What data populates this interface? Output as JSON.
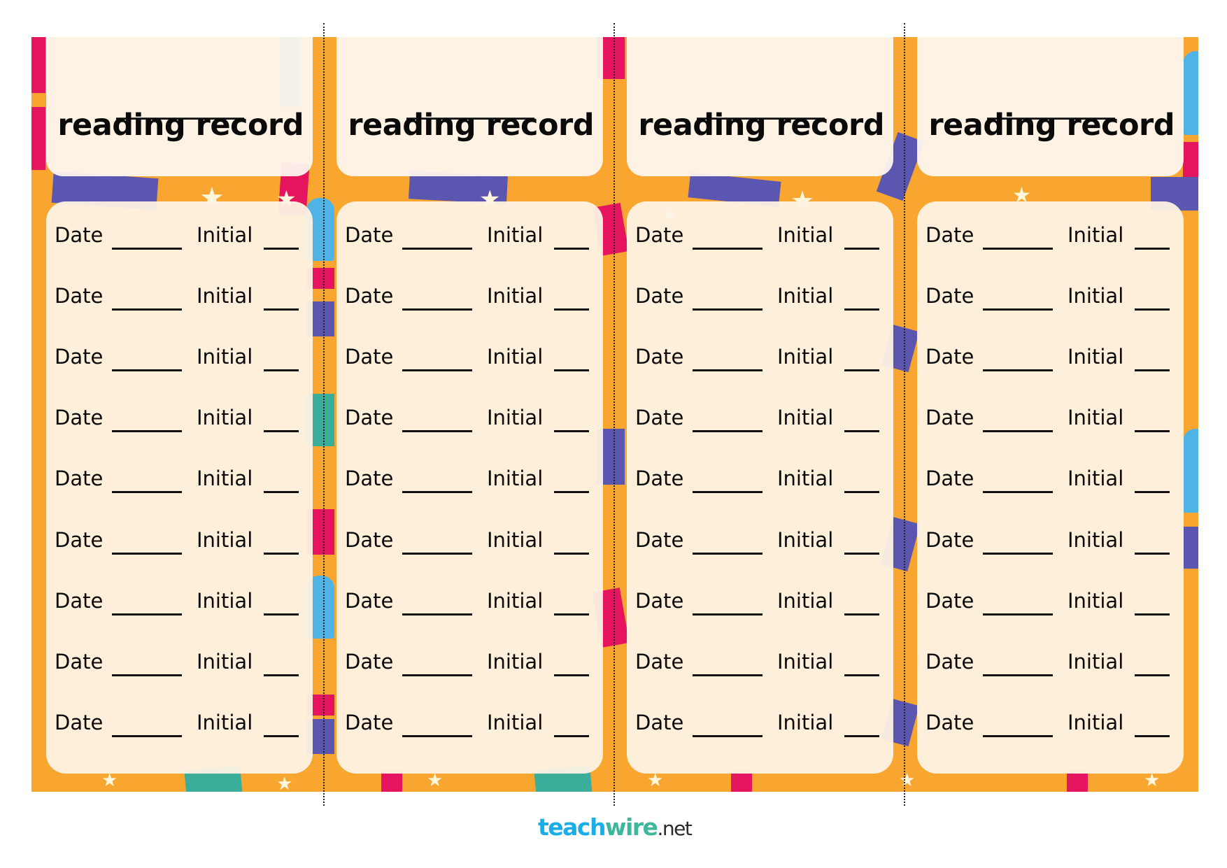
{
  "document": {
    "type": "printable bookmarks sheet",
    "colors": {
      "background_band": "#F8A630",
      "card_background": "#FDF2E4",
      "text": "#0A0A0A",
      "brand_teach": "#1AAEE8",
      "brand_wire": "#3DB89A",
      "brand_net": "#2A2A2A"
    }
  },
  "bookmarks": [
    {
      "name_blank": "_____________",
      "title": "reading record",
      "rows": [
        {
          "date_label": "Date",
          "date_blank": "______",
          "initial_label": "Initial",
          "initial_blank": "___"
        },
        {
          "date_label": "Date",
          "date_blank": "______",
          "initial_label": "Initial",
          "initial_blank": "___"
        },
        {
          "date_label": "Date",
          "date_blank": "______",
          "initial_label": "Initial",
          "initial_blank": "___"
        },
        {
          "date_label": "Date",
          "date_blank": "______",
          "initial_label": "Initial",
          "initial_blank": "___"
        },
        {
          "date_label": "Date",
          "date_blank": "______",
          "initial_label": "Initial",
          "initial_blank": "___"
        },
        {
          "date_label": "Date",
          "date_blank": "______",
          "initial_label": "Initial",
          "initial_blank": "___"
        },
        {
          "date_label": "Date",
          "date_blank": "______",
          "initial_label": "Initial",
          "initial_blank": "___"
        },
        {
          "date_label": "Date",
          "date_blank": "______",
          "initial_label": "Initial",
          "initial_blank": "___"
        },
        {
          "date_label": "Date",
          "date_blank": "______",
          "initial_label": "Initial",
          "initial_blank": "___"
        }
      ]
    },
    {
      "name_blank": "_____________",
      "title": "reading record",
      "rows": [
        {
          "date_label": "Date",
          "date_blank": "______",
          "initial_label": "Initial",
          "initial_blank": "___"
        },
        {
          "date_label": "Date",
          "date_blank": "______",
          "initial_label": "Initial",
          "initial_blank": "___"
        },
        {
          "date_label": "Date",
          "date_blank": "______",
          "initial_label": "Initial",
          "initial_blank": "___"
        },
        {
          "date_label": "Date",
          "date_blank": "______",
          "initial_label": "Initial",
          "initial_blank": "___"
        },
        {
          "date_label": "Date",
          "date_blank": "______",
          "initial_label": "Initial",
          "initial_blank": "___"
        },
        {
          "date_label": "Date",
          "date_blank": "______",
          "initial_label": "Initial",
          "initial_blank": "___"
        },
        {
          "date_label": "Date",
          "date_blank": "______",
          "initial_label": "Initial",
          "initial_blank": "___"
        },
        {
          "date_label": "Date",
          "date_blank": "______",
          "initial_label": "Initial",
          "initial_blank": "___"
        },
        {
          "date_label": "Date",
          "date_blank": "______",
          "initial_label": "Initial",
          "initial_blank": "___"
        }
      ]
    },
    {
      "name_blank": "_____________",
      "title": "reading record",
      "rows": [
        {
          "date_label": "Date",
          "date_blank": "______",
          "initial_label": "Initial",
          "initial_blank": "___"
        },
        {
          "date_label": "Date",
          "date_blank": "______",
          "initial_label": "Initial",
          "initial_blank": "___"
        },
        {
          "date_label": "Date",
          "date_blank": "______",
          "initial_label": "Initial",
          "initial_blank": "___"
        },
        {
          "date_label": "Date",
          "date_blank": "______",
          "initial_label": "Initial",
          "initial_blank": "___"
        },
        {
          "date_label": "Date",
          "date_blank": "______",
          "initial_label": "Initial",
          "initial_blank": "___"
        },
        {
          "date_label": "Date",
          "date_blank": "______",
          "initial_label": "Initial",
          "initial_blank": "___"
        },
        {
          "date_label": "Date",
          "date_blank": "______",
          "initial_label": "Initial",
          "initial_blank": "___"
        },
        {
          "date_label": "Date",
          "date_blank": "______",
          "initial_label": "Initial",
          "initial_blank": "___"
        },
        {
          "date_label": "Date",
          "date_blank": "______",
          "initial_label": "Initial",
          "initial_blank": "___"
        }
      ]
    },
    {
      "name_blank": "_____________",
      "title": "reading record",
      "rows": [
        {
          "date_label": "Date",
          "date_blank": "______",
          "initial_label": "Initial",
          "initial_blank": "___"
        },
        {
          "date_label": "Date",
          "date_blank": "______",
          "initial_label": "Initial",
          "initial_blank": "___"
        },
        {
          "date_label": "Date",
          "date_blank": "______",
          "initial_label": "Initial",
          "initial_blank": "___"
        },
        {
          "date_label": "Date",
          "date_blank": "______",
          "initial_label": "Initial",
          "initial_blank": "___"
        },
        {
          "date_label": "Date",
          "date_blank": "______",
          "initial_label": "Initial",
          "initial_blank": "___"
        },
        {
          "date_label": "Date",
          "date_blank": "______",
          "initial_label": "Initial",
          "initial_blank": "___"
        },
        {
          "date_label": "Date",
          "date_blank": "______",
          "initial_label": "Initial",
          "initial_blank": "___"
        },
        {
          "date_label": "Date",
          "date_blank": "______",
          "initial_label": "Initial",
          "initial_blank": "___"
        },
        {
          "date_label": "Date",
          "date_blank": "______",
          "initial_label": "Initial",
          "initial_blank": "___"
        }
      ]
    }
  ],
  "cut_lines": {
    "count": 3,
    "style": "dotted"
  },
  "footer": {
    "logo": {
      "part1": "teach",
      "part2": "wire",
      "part3": ".net"
    }
  }
}
